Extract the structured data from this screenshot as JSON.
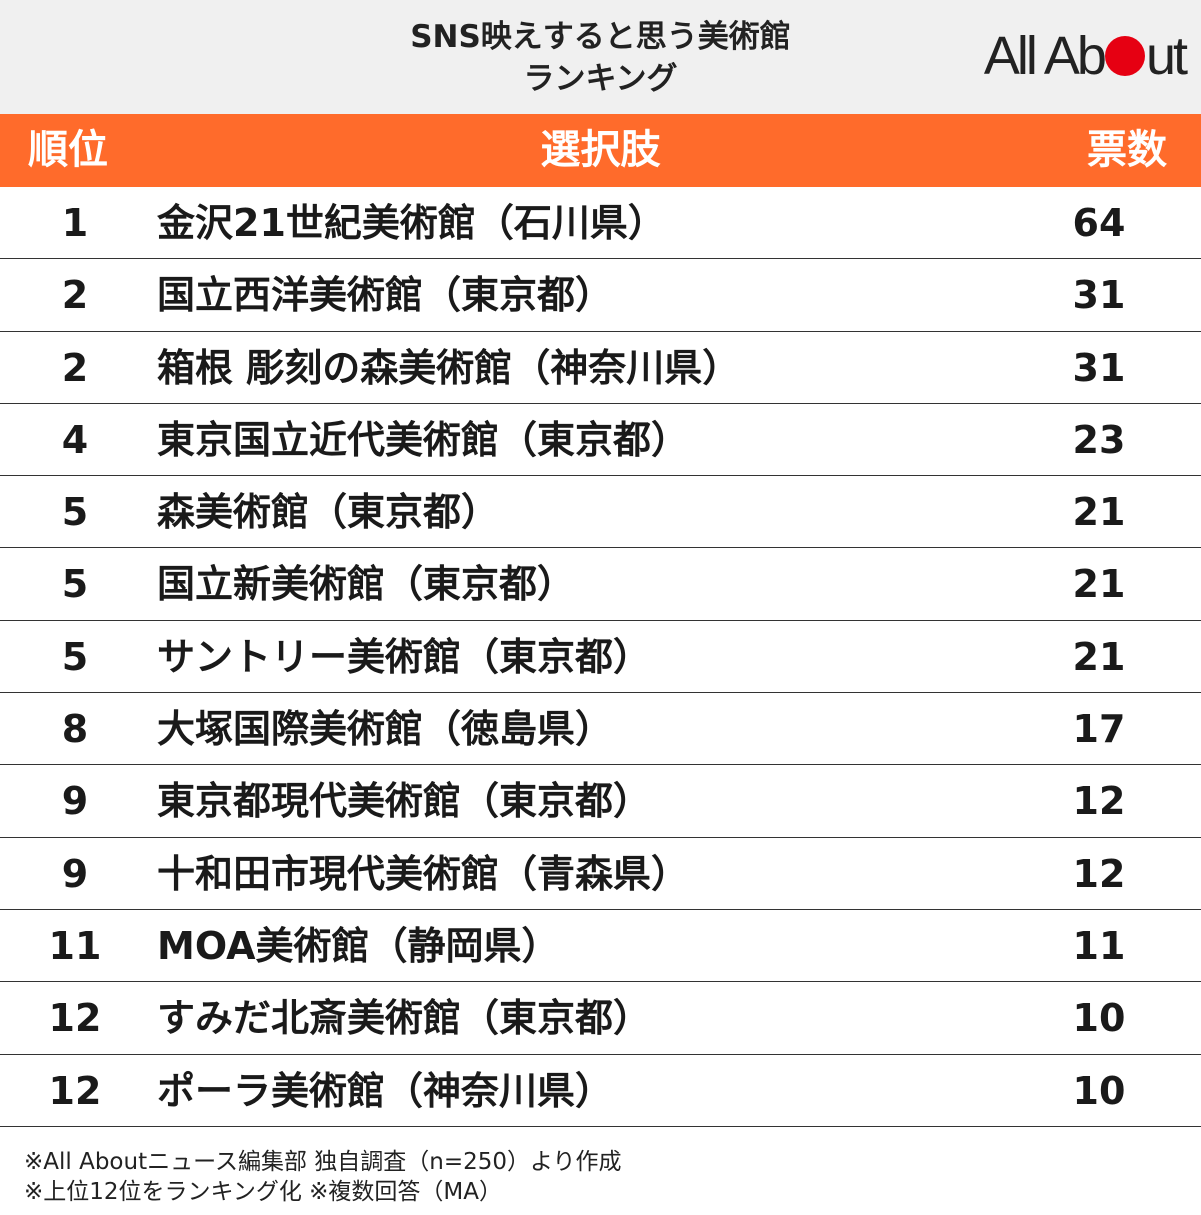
{
  "title": {
    "line1": "SNS映えすると思う美術館",
    "line2": "ランキング"
  },
  "logo": {
    "text_before": "All Ab",
    "text_after": "ut",
    "dot_color": "#e60012"
  },
  "colors": {
    "header_bg": "#ff6b2b",
    "title_bg": "#f0f0f0"
  },
  "header": {
    "rank": "順位",
    "choice": "選択肢",
    "votes": "票数"
  },
  "rows": [
    {
      "rank": "1",
      "name": "金沢21世紀美術館（石川県）",
      "votes": "64"
    },
    {
      "rank": "2",
      "name": "国立西洋美術館（東京都）",
      "votes": "31"
    },
    {
      "rank": "2",
      "name": "箱根 彫刻の森美術館（神奈川県）",
      "votes": "31"
    },
    {
      "rank": "4",
      "name": "東京国立近代美術館（東京都）",
      "votes": "23"
    },
    {
      "rank": "5",
      "name": "森美術館（東京都）",
      "votes": "21"
    },
    {
      "rank": "5",
      "name": "国立新美術館（東京都）",
      "votes": "21"
    },
    {
      "rank": "5",
      "name": "サントリー美術館（東京都）",
      "votes": "21"
    },
    {
      "rank": "8",
      "name": "大塚国際美術館（徳島県）",
      "votes": "17"
    },
    {
      "rank": "9",
      "name": "東京都現代美術館（東京都）",
      "votes": "12"
    },
    {
      "rank": "9",
      "name": "十和田市現代美術館（青森県）",
      "votes": "12"
    },
    {
      "rank": "11",
      "name": "MOA美術館（静岡県）",
      "votes": "11"
    },
    {
      "rank": "12",
      "name": "すみだ北斎美術館（東京都）",
      "votes": "10"
    },
    {
      "rank": "12",
      "name": "ポーラ美術館（神奈川県）",
      "votes": "10"
    }
  ],
  "notes": {
    "line1": "※All Aboutニュース編集部 独自調査（n=250）より作成",
    "line2": "※上位12位をランキング化 ※複数回答（MA）"
  }
}
